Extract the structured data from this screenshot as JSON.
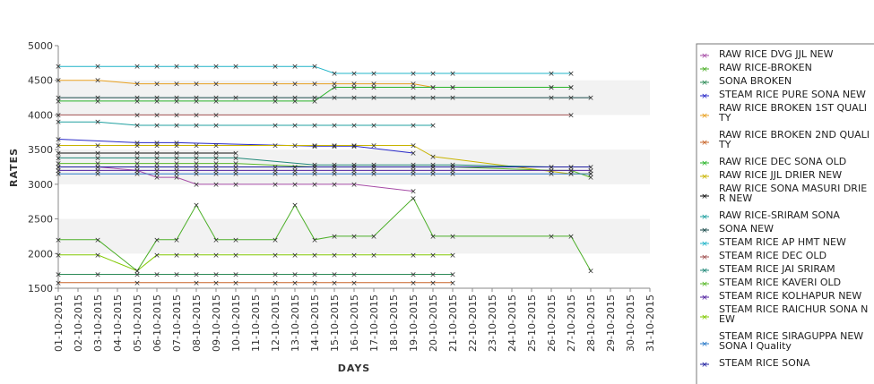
{
  "chart_data": {
    "type": "line",
    "xlabel": "DAYS",
    "ylabel": "RATES",
    "ylim": [
      1500,
      5000
    ],
    "yticks": [
      1500,
      2000,
      2500,
      3000,
      3500,
      4000,
      4500,
      5000
    ],
    "x": [
      "01-10-2015",
      "02-10-2015",
      "03-10-2015",
      "04-10-2015",
      "05-10-2015",
      "06-10-2015",
      "07-10-2015",
      "08-10-2015",
      "09-10-2015",
      "10-10-2015",
      "11-10-2015",
      "12-10-2015",
      "13-10-2015",
      "14-10-2015",
      "15-10-2015",
      "16-10-2015",
      "17-10-2015",
      "18-10-2015",
      "19-10-2015",
      "20-10-2015",
      "21-10-2015",
      "22-10-2015",
      "23-10-2015",
      "24-10-2015",
      "25-10-2015",
      "26-10-2015",
      "27-10-2015",
      "28-10-2015",
      "29-10-2015",
      "30-10-2015",
      "31-10-2015"
    ],
    "grid": "alternating horizontal bands",
    "legend_position": "right",
    "series": [
      {
        "name": "RAW RICE DVG JJL NEW",
        "color": "#a64ca6",
        "values": [
          3250,
          null,
          3250,
          null,
          3200,
          3100,
          3100,
          3000,
          3000,
          3000,
          null,
          3000,
          3000,
          3000,
          3000,
          3000,
          null,
          null,
          2900,
          null,
          null,
          null,
          null,
          null,
          null,
          null,
          null,
          null,
          null,
          null,
          null
        ]
      },
      {
        "name": "RAW RICE-BROKEN",
        "color": "#4caf28",
        "values": [
          2200,
          null,
          2200,
          null,
          1750,
          2200,
          2200,
          2700,
          2200,
          2200,
          null,
          2200,
          2700,
          2200,
          2250,
          2250,
          2250,
          null,
          2800,
          2250,
          2250,
          null,
          null,
          null,
          null,
          2250,
          2250,
          1750,
          null,
          null,
          null
        ]
      },
      {
        "name": "SONA BROKEN",
        "color": "#2e8b57",
        "values": [
          1700,
          null,
          1700,
          null,
          1700,
          1700,
          1700,
          1700,
          1700,
          1700,
          null,
          1700,
          1700,
          1700,
          1700,
          1700,
          null,
          null,
          1700,
          1700,
          1700,
          null,
          null,
          null,
          null,
          null,
          null,
          null,
          null,
          null,
          null
        ]
      },
      {
        "name": "STEAM RICE PURE SONA NEW",
        "color": "#2828c8",
        "values": [
          3650,
          null,
          null,
          null,
          3600,
          3600,
          3600,
          null,
          null,
          null,
          null,
          null,
          null,
          3550,
          3550,
          3550,
          null,
          null,
          3450,
          null,
          null,
          null,
          null,
          null,
          null,
          null,
          null,
          null,
          null,
          null,
          null
        ]
      },
      {
        "name": "RAW RICE BROKEN 1ST QUALITY",
        "color": "#e8a020",
        "values": [
          4500,
          null,
          4500,
          null,
          4450,
          4450,
          4450,
          4450,
          4450,
          null,
          null,
          4450,
          4450,
          4450,
          4450,
          4450,
          4450,
          null,
          4450,
          4400,
          4400,
          null,
          null,
          null,
          null,
          4400,
          4400,
          null,
          null,
          null,
          null
        ]
      },
      {
        "name": "RAW RICE BROKEN 2ND QUALITY",
        "color": "#c86428",
        "values": [
          1580,
          null,
          null,
          null,
          1580,
          null,
          null,
          1580,
          1580,
          1580,
          null,
          1580,
          1580,
          1580,
          1580,
          1580,
          null,
          null,
          1580,
          1580,
          1580,
          null,
          null,
          null,
          null,
          null,
          null,
          null,
          null,
          null,
          null
        ]
      },
      {
        "name": "RAW RICE DEC SONA OLD",
        "color": "#28b428",
        "values": [
          4200,
          null,
          4200,
          null,
          4200,
          4200,
          4200,
          4200,
          4200,
          null,
          null,
          4200,
          4200,
          4200,
          4400,
          4400,
          4400,
          null,
          4400,
          4400,
          4400,
          null,
          null,
          null,
          null,
          4400,
          4400,
          null,
          null,
          null,
          null
        ]
      },
      {
        "name": "RAW RICE JJL DRIER NEW",
        "color": "#c8b400",
        "values": [
          3560,
          null,
          3560,
          null,
          3560,
          3560,
          3560,
          3560,
          3560,
          null,
          null,
          3560,
          3560,
          3560,
          3560,
          3560,
          3560,
          null,
          3560,
          3400,
          null,
          null,
          null,
          null,
          null,
          null,
          3150,
          3150,
          null,
          null,
          null
        ]
      },
      {
        "name": "RAW RICE SONA MASURI DRIER NEW",
        "color": "#111111",
        "values": [
          3450,
          null,
          3450,
          null,
          3450,
          3450,
          3450,
          3450,
          3450,
          3450,
          null,
          null,
          null,
          null,
          null,
          null,
          null,
          null,
          null,
          null,
          null,
          null,
          null,
          null,
          null,
          null,
          null,
          null,
          null,
          null,
          null
        ]
      },
      {
        "name": "RAW RICE-SRIRAM SONA",
        "color": "#20a0a0",
        "values": [
          3900,
          null,
          3900,
          null,
          3850,
          3850,
          3850,
          3850,
          3850,
          null,
          null,
          3850,
          3850,
          3850,
          3850,
          3850,
          3850,
          null,
          3850,
          3850,
          null,
          null,
          null,
          null,
          null,
          null,
          null,
          null,
          null,
          null,
          null
        ]
      },
      {
        "name": "SONA NEW",
        "color": "#1a4a4a",
        "values": [
          4250,
          null,
          4250,
          null,
          4250,
          4250,
          4250,
          4250,
          4250,
          4250,
          null,
          4250,
          4250,
          4250,
          4250,
          4250,
          4250,
          null,
          4250,
          4250,
          4250,
          null,
          null,
          null,
          null,
          4250,
          4250,
          4250,
          null,
          null,
          null
        ]
      },
      {
        "name": "STEAM RICE AP HMT NEW",
        "color": "#20b4c8",
        "values": [
          4700,
          null,
          4700,
          null,
          4700,
          4700,
          4700,
          4700,
          4700,
          4700,
          null,
          4700,
          4700,
          4700,
          4600,
          4600,
          4600,
          null,
          4600,
          4600,
          4600,
          null,
          null,
          null,
          null,
          4600,
          4600,
          null,
          null,
          null,
          null
        ]
      },
      {
        "name": "STEAM RICE DEC OLD",
        "color": "#a05050",
        "values": [
          4000,
          null,
          null,
          null,
          4000,
          4000,
          4000,
          4000,
          4000,
          null,
          null,
          null,
          null,
          null,
          null,
          null,
          null,
          null,
          null,
          null,
          null,
          null,
          null,
          null,
          null,
          null,
          4000,
          null,
          null,
          null,
          null
        ]
      },
      {
        "name": "STEAM RICE JAI SRIRAM",
        "color": "#208878",
        "values": [
          3380,
          null,
          3380,
          null,
          3380,
          3380,
          3380,
          3380,
          3380,
          3380,
          null,
          null,
          null,
          3280,
          3280,
          3280,
          3280,
          null,
          3280,
          3280,
          3280,
          null,
          null,
          null,
          null,
          3250,
          3250,
          null,
          null,
          null,
          null
        ]
      },
      {
        "name": "STEAM RICE KAVERI OLD",
        "color": "#58b828",
        "values": [
          3300,
          null,
          3300,
          null,
          3300,
          3300,
          3300,
          3300,
          3300,
          3300,
          null,
          null,
          null,
          3250,
          3250,
          3250,
          3250,
          null,
          3250,
          3250,
          3250,
          null,
          null,
          null,
          null,
          3200,
          3200,
          3100,
          null,
          null,
          null
        ]
      },
      {
        "name": "STEAM RICE KOLHAPUR NEW",
        "color": "#5020a0",
        "values": [
          3200,
          null,
          3200,
          null,
          3200,
          3200,
          3200,
          3200,
          3200,
          3200,
          null,
          3200,
          3200,
          3200,
          3200,
          3200,
          3200,
          null,
          3200,
          3200,
          3200,
          null,
          null,
          null,
          null,
          3200,
          3200,
          3200,
          null,
          null,
          null
        ]
      },
      {
        "name": "STEAM RICE RAICHUR SONA NEW",
        "color": "#80c800",
        "values": [
          1980,
          null,
          1980,
          null,
          1750,
          1980,
          1980,
          1980,
          1980,
          1980,
          null,
          1980,
          1980,
          1980,
          1980,
          1980,
          1980,
          null,
          1980,
          1980,
          1980,
          null,
          null,
          null,
          null,
          null,
          null,
          null,
          null,
          null,
          null
        ]
      },
      {
        "name": "STEAM RICE SIRAGUPPA NEW SONA I Quality",
        "color": "#2878c8",
        "values": [
          3150,
          null,
          3150,
          null,
          3150,
          3150,
          3150,
          3150,
          3150,
          3150,
          null,
          3150,
          3150,
          3150,
          3150,
          3150,
          3150,
          null,
          3150,
          3150,
          3150,
          null,
          null,
          null,
          null,
          3150,
          3150,
          3150,
          null,
          null,
          null
        ]
      },
      {
        "name": "STEAM RICE SONA",
        "color": "#2020a0",
        "values": [
          3250,
          null,
          3250,
          null,
          3250,
          3250,
          3250,
          3250,
          3250,
          3250,
          null,
          3250,
          3250,
          3250,
          3250,
          3250,
          3250,
          null,
          3250,
          3250,
          3250,
          null,
          null,
          null,
          null,
          3250,
          3250,
          3250,
          null,
          null,
          null
        ]
      }
    ]
  },
  "legend_display": [
    [
      "RAW RICE DVG JJL NEW"
    ],
    [
      "RAW RICE-BROKEN"
    ],
    [
      "SONA BROKEN"
    ],
    [
      "STEAM RICE PURE SONA NEW"
    ],
    [
      "RAW RICE BROKEN 1ST QUALI",
      "TY"
    ],
    [
      "RAW RICE BROKEN 2ND QUALI",
      "TY"
    ],
    [
      "RAW RICE DEC SONA OLD"
    ],
    [
      "RAW RICE JJL DRIER NEW"
    ],
    [
      "RAW RICE SONA MASURI DRIE",
      "R NEW"
    ],
    [
      "RAW RICE-SRIRAM SONA"
    ],
    [
      "SONA NEW"
    ],
    [
      "STEAM RICE AP HMT NEW"
    ],
    [
      "STEAM RICE DEC OLD"
    ],
    [
      "STEAM RICE JAI SRIRAM"
    ],
    [
      "STEAM RICE KAVERI OLD"
    ],
    [
      "STEAM RICE KOLHAPUR NEW"
    ],
    [
      "STEAM RICE RAICHUR SONA N",
      "EW"
    ],
    [
      "STEAM RICE SIRAGUPPA NEW",
      "SONA I Quality"
    ],
    [
      "STEAM RICE SONA"
    ]
  ]
}
